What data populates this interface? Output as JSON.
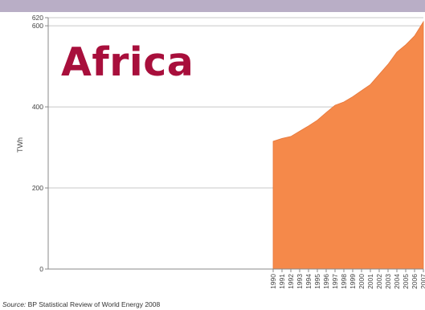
{
  "chart_data": {
    "type": "area",
    "title": "Africa",
    "ylabel": "TWh",
    "xlabel": "",
    "x": [
      "1990",
      "1991",
      "1992",
      "1993",
      "1994",
      "1995",
      "1996",
      "1997",
      "1998",
      "1999",
      "2000",
      "2001",
      "2002",
      "2003",
      "2004",
      "2005",
      "2006",
      "2007"
    ],
    "series": [
      {
        "values": [
          315,
          322,
          327,
          340,
          353,
          367,
          386,
          404,
          412,
          425,
          440,
          455,
          480,
          505,
          535,
          553,
          575,
          610
        ],
        "color": "#f5894a"
      }
    ],
    "ylim": [
      0,
      620
    ],
    "yticks": [
      0,
      200,
      400,
      600,
      620
    ],
    "grid": true,
    "source_label": "Source:",
    "source_text": "BP Statistical Review of World Energy 2008"
  }
}
